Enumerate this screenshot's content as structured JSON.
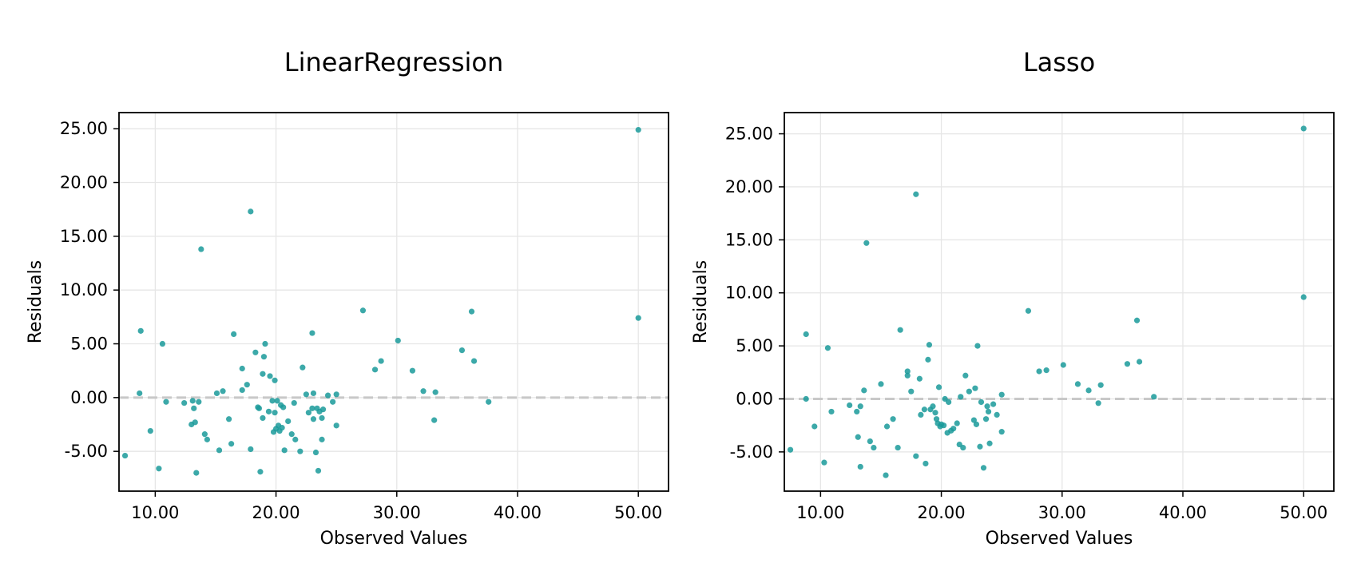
{
  "colors": {
    "point": "#1a9a9a",
    "zero_line": "#c8c8c8",
    "grid": "#e6e6e6",
    "frame": "#000000"
  },
  "chart_data": [
    {
      "type": "scatter",
      "title": "LinearRegression",
      "xlabel": "Observed Values",
      "ylabel": "Residuals",
      "xlim": [
        7.0,
        52.5
      ],
      "ylim": [
        -8.7,
        26.5
      ],
      "xticks": [
        10,
        20,
        30,
        40,
        50
      ],
      "yticks": [
        -5,
        0,
        5,
        10,
        15,
        20,
        25
      ],
      "tick_format": "2 decimals",
      "grid": true,
      "reference_line": {
        "y": 0,
        "style": "dashed"
      },
      "points": [
        [
          7.5,
          -5.4
        ],
        [
          8.8,
          6.2
        ],
        [
          8.7,
          0.4
        ],
        [
          9.6,
          -3.1
        ],
        [
          10.3,
          -6.6
        ],
        [
          10.6,
          5.0
        ],
        [
          10.9,
          -0.4
        ],
        [
          12.4,
          -0.5
        ],
        [
          13.1,
          -0.3
        ],
        [
          13.0,
          -2.5
        ],
        [
          13.2,
          -1.0
        ],
        [
          13.3,
          -2.3
        ],
        [
          13.4,
          -7.0
        ],
        [
          13.6,
          -0.4
        ],
        [
          13.8,
          13.8
        ],
        [
          14.1,
          -3.4
        ],
        [
          14.3,
          -3.9
        ],
        [
          15.1,
          0.4
        ],
        [
          15.3,
          -4.9
        ],
        [
          15.6,
          0.6
        ],
        [
          16.1,
          -2.0
        ],
        [
          16.3,
          -4.3
        ],
        [
          16.5,
          5.9
        ],
        [
          17.2,
          2.7
        ],
        [
          17.2,
          0.7
        ],
        [
          17.6,
          1.2
        ],
        [
          17.9,
          -4.8
        ],
        [
          17.9,
          17.3
        ],
        [
          18.3,
          4.2
        ],
        [
          18.5,
          -0.9
        ],
        [
          18.6,
          -1.0
        ],
        [
          18.9,
          2.2
        ],
        [
          18.9,
          -1.9
        ],
        [
          18.7,
          -6.9
        ],
        [
          19.0,
          3.8
        ],
        [
          19.1,
          5.0
        ],
        [
          19.4,
          -1.3
        ],
        [
          19.5,
          2.0
        ],
        [
          19.7,
          -0.3
        ],
        [
          19.8,
          -3.2
        ],
        [
          19.9,
          -1.4
        ],
        [
          19.9,
          1.6
        ],
        [
          20.0,
          -2.9
        ],
        [
          20.1,
          -0.3
        ],
        [
          20.2,
          -2.6
        ],
        [
          20.3,
          -3.1
        ],
        [
          20.4,
          -0.7
        ],
        [
          20.5,
          -2.8
        ],
        [
          20.6,
          -0.9
        ],
        [
          20.7,
          -4.9
        ],
        [
          21.0,
          -2.2
        ],
        [
          21.3,
          -3.4
        ],
        [
          21.5,
          -0.5
        ],
        [
          21.6,
          -3.9
        ],
        [
          22.0,
          -5.0
        ],
        [
          22.2,
          2.8
        ],
        [
          22.5,
          0.3
        ],
        [
          22.7,
          -1.4
        ],
        [
          23.0,
          6.0
        ],
        [
          23.0,
          -1.0
        ],
        [
          23.1,
          0.4
        ],
        [
          23.1,
          -2.0
        ],
        [
          23.3,
          -5.1
        ],
        [
          23.4,
          -1.0
        ],
        [
          23.5,
          -6.8
        ],
        [
          23.6,
          -1.3
        ],
        [
          23.8,
          -3.9
        ],
        [
          23.8,
          -1.9
        ],
        [
          23.9,
          -1.1
        ],
        [
          24.3,
          0.2
        ],
        [
          24.7,
          -0.4
        ],
        [
          25.0,
          0.3
        ],
        [
          25.0,
          -2.6
        ],
        [
          27.2,
          8.1
        ],
        [
          28.2,
          2.6
        ],
        [
          28.7,
          3.4
        ],
        [
          30.1,
          5.3
        ],
        [
          31.3,
          2.5
        ],
        [
          32.2,
          0.6
        ],
        [
          33.1,
          -2.1
        ],
        [
          33.2,
          0.5
        ],
        [
          35.4,
          4.4
        ],
        [
          36.2,
          8.0
        ],
        [
          36.4,
          3.4
        ],
        [
          37.6,
          -0.4
        ],
        [
          50.0,
          24.9
        ],
        [
          50.0,
          7.4
        ]
      ]
    },
    {
      "type": "scatter",
      "title": "Lasso",
      "xlabel": "Observed Values",
      "ylabel": "Residuals",
      "xlim": [
        7.0,
        52.5
      ],
      "ylim": [
        -8.7,
        27.0
      ],
      "xticks": [
        10,
        20,
        30,
        40,
        50
      ],
      "yticks": [
        -5,
        0,
        5,
        10,
        15,
        20,
        25
      ],
      "tick_format": "2 decimals",
      "grid": true,
      "reference_line": {
        "y": 0,
        "style": "dashed"
      },
      "points": [
        [
          7.5,
          -4.8
        ],
        [
          8.8,
          6.1
        ],
        [
          8.8,
          0.0
        ],
        [
          9.5,
          -2.6
        ],
        [
          10.3,
          -6.0
        ],
        [
          10.6,
          4.8
        ],
        [
          10.9,
          -1.2
        ],
        [
          12.4,
          -0.6
        ],
        [
          13.1,
          -3.6
        ],
        [
          13.0,
          -1.2
        ],
        [
          13.3,
          -0.7
        ],
        [
          13.3,
          -6.4
        ],
        [
          13.6,
          0.8
        ],
        [
          13.8,
          14.7
        ],
        [
          14.1,
          -4.0
        ],
        [
          14.4,
          -4.6
        ],
        [
          15.0,
          1.4
        ],
        [
          15.4,
          -7.2
        ],
        [
          15.5,
          -2.6
        ],
        [
          16.0,
          -1.9
        ],
        [
          16.4,
          -4.6
        ],
        [
          16.6,
          6.5
        ],
        [
          17.2,
          2.6
        ],
        [
          17.2,
          2.2
        ],
        [
          17.5,
          0.7
        ],
        [
          17.9,
          -5.4
        ],
        [
          17.9,
          19.3
        ],
        [
          18.3,
          -1.5
        ],
        [
          18.2,
          1.9
        ],
        [
          18.6,
          -1.0
        ],
        [
          18.7,
          -6.1
        ],
        [
          18.9,
          3.7
        ],
        [
          19.0,
          5.1
        ],
        [
          19.1,
          -1.0
        ],
        [
          19.3,
          -0.7
        ],
        [
          19.5,
          -1.3
        ],
        [
          19.6,
          -1.9
        ],
        [
          19.7,
          -2.3
        ],
        [
          19.8,
          1.1
        ],
        [
          19.9,
          -2.6
        ],
        [
          20.0,
          -2.4
        ],
        [
          20.2,
          -2.5
        ],
        [
          20.3,
          0.0
        ],
        [
          20.5,
          -3.2
        ],
        [
          20.6,
          -0.3
        ],
        [
          20.8,
          -3.0
        ],
        [
          21.0,
          -2.8
        ],
        [
          21.3,
          -2.3
        ],
        [
          21.5,
          -4.3
        ],
        [
          21.8,
          -4.6
        ],
        [
          21.6,
          0.2
        ],
        [
          22.0,
          2.2
        ],
        [
          22.3,
          0.7
        ],
        [
          22.7,
          -2.0
        ],
        [
          22.8,
          1.0
        ],
        [
          22.9,
          -2.4
        ],
        [
          23.0,
          5.0
        ],
        [
          23.2,
          -4.5
        ],
        [
          23.3,
          -0.3
        ],
        [
          23.5,
          -6.5
        ],
        [
          23.7,
          -1.9
        ],
        [
          23.8,
          -0.7
        ],
        [
          23.9,
          -1.2
        ],
        [
          24.0,
          -4.2
        ],
        [
          24.3,
          -0.5
        ],
        [
          24.6,
          -1.5
        ],
        [
          25.0,
          0.4
        ],
        [
          25.0,
          -3.1
        ],
        [
          27.2,
          8.3
        ],
        [
          28.1,
          2.6
        ],
        [
          28.7,
          2.7
        ],
        [
          30.1,
          3.2
        ],
        [
          31.3,
          1.4
        ],
        [
          32.2,
          0.8
        ],
        [
          33.0,
          -0.4
        ],
        [
          33.2,
          1.3
        ],
        [
          35.4,
          3.3
        ],
        [
          36.2,
          7.4
        ],
        [
          36.4,
          3.5
        ],
        [
          37.6,
          0.2
        ],
        [
          50.0,
          25.5
        ],
        [
          50.0,
          9.6
        ]
      ]
    }
  ]
}
